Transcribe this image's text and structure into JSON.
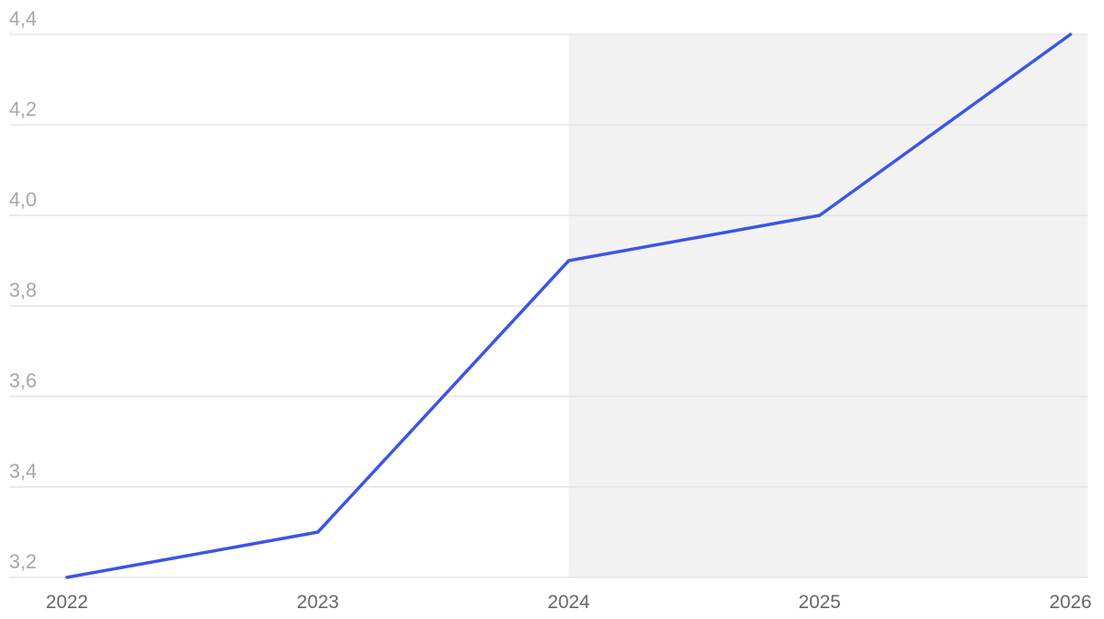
{
  "chart_data": {
    "type": "line",
    "categories": [
      "2022",
      "2023",
      "2024",
      "2025",
      "2026"
    ],
    "series": [
      {
        "color": "#3b55e6",
        "values": [
          3.2,
          3.3,
          3.9,
          4.0,
          4.4
        ]
      }
    ],
    "ylim": [
      3.2,
      4.4
    ],
    "yticks": [
      {
        "value": 3.2,
        "label": "3,2"
      },
      {
        "value": 3.4,
        "label": "3,4"
      },
      {
        "value": 3.6,
        "label": "3,6"
      },
      {
        "value": 3.8,
        "label": "3,8"
      },
      {
        "value": 4.0,
        "label": "4,0"
      },
      {
        "value": 4.2,
        "label": "4,2"
      },
      {
        "value": 4.4,
        "label": "4,4"
      }
    ],
    "grid": true,
    "shaded_from": "2024",
    "shade_color": "#f2f2f2"
  }
}
